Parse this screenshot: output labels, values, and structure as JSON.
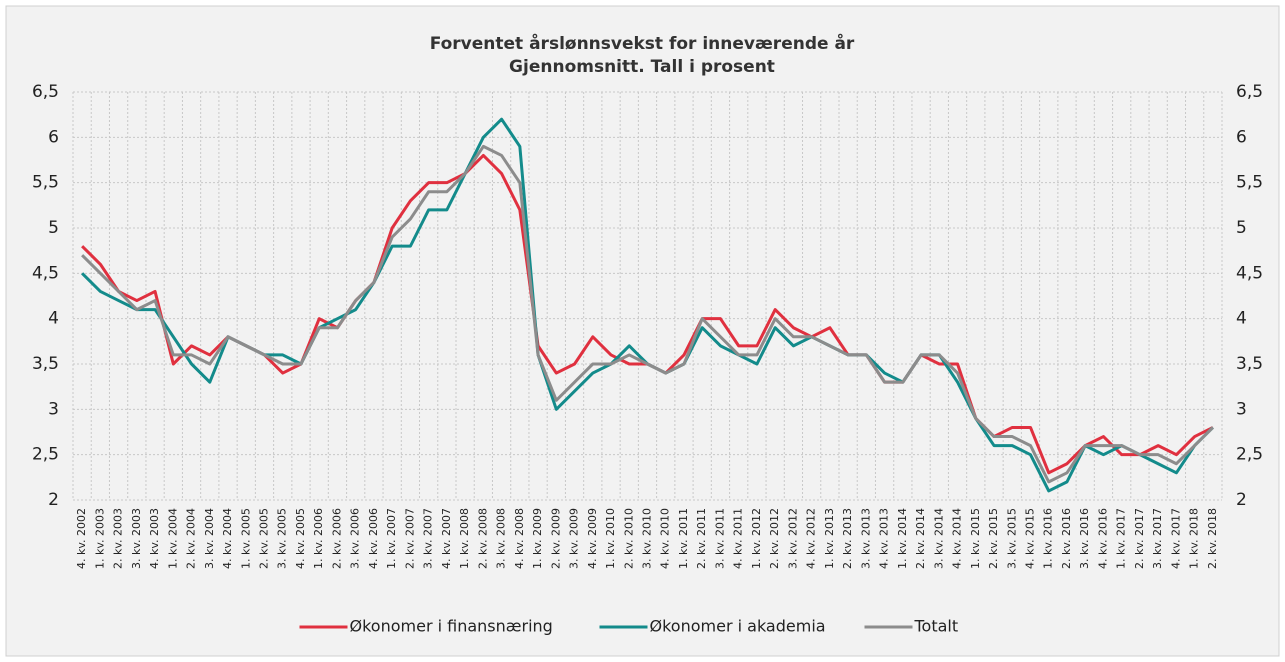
{
  "chart_data": {
    "type": "line",
    "title": "Forventet årslønnsvekst for inneværende år",
    "subtitle": "Gjennomsnitt. Tall i prosent",
    "categories": [
      "4. kv. 2002",
      "1. kv. 2003",
      "2. kv. 2003",
      "3. kv. 2003",
      "4. kv. 2003",
      "1. kv. 2004",
      "2. kv. 2004",
      "3. kv. 2004",
      "4. kv. 2004",
      "1. kv. 2005",
      "2. kv. 2005",
      "3. kv. 2005",
      "4. kv. 2005",
      "1. kv. 2006",
      "2. kv. 2006",
      "3. kv. 2006",
      "4. kv. 2006",
      "1. kv. 2007",
      "2. kv. 2007",
      "3. kv. 2007",
      "4. kv. 2007",
      "1. kv. 2008",
      "2. kv. 2008",
      "3. kv. 2008",
      "4. kv. 2008",
      "1. kv. 2009",
      "2. kv. 2009",
      "3. kv. 2009",
      "4. kv. 2009",
      "1. kv. 2010",
      "2. kv. 2010",
      "3. kv. 2010",
      "4. kv. 2010",
      "1. kv. 2011",
      "2. kv. 2011",
      "3. kv. 2011",
      "4. kv. 2011",
      "1. kv. 2012",
      "2. kv. 2012",
      "3. kv. 2012",
      "4. kv. 2012",
      "1. kv. 2013",
      "2. kv. 2013",
      "3. kv. 2013",
      "4. kv. 2013",
      "1. kv. 2014",
      "2. kv. 2014",
      "3. kv. 2014",
      "4. kv. 2014",
      "1. kv. 2015",
      "2. kv. 2015",
      "3. kv. 2015",
      "4. kv. 2015",
      "1. kv. 2016",
      "2. kv. 2016",
      "3. kv. 2016",
      "4. kv. 2016",
      "1. kv. 2017",
      "2. kv. 2017",
      "3. kv. 2017",
      "4. kv. 2017",
      "1. kv. 2018",
      "2. kv. 2018"
    ],
    "series": [
      {
        "name": "Økonomer i finansnæring",
        "color": "#e0303f",
        "values": [
          4.8,
          4.6,
          4.3,
          4.2,
          4.3,
          3.5,
          3.7,
          3.6,
          3.8,
          3.7,
          3.6,
          3.4,
          3.5,
          4.0,
          3.9,
          4.2,
          4.4,
          5.0,
          5.3,
          5.5,
          5.5,
          5.6,
          5.8,
          5.6,
          5.2,
          3.7,
          3.4,
          3.5,
          3.8,
          3.6,
          3.5,
          3.5,
          3.4,
          3.6,
          4.0,
          4.0,
          3.7,
          3.7,
          4.1,
          3.9,
          3.8,
          3.9,
          3.6,
          3.6,
          3.3,
          3.3,
          3.6,
          3.5,
          3.5,
          2.9,
          2.7,
          2.8,
          2.8,
          2.3,
          2.4,
          2.6,
          2.7,
          2.5,
          2.5,
          2.6,
          2.5,
          2.7,
          2.8
        ]
      },
      {
        "name": "Økonomer i akademia",
        "color": "#138b8b",
        "values": [
          4.5,
          4.3,
          4.2,
          4.1,
          4.1,
          3.8,
          3.5,
          3.3,
          3.8,
          3.7,
          3.6,
          3.6,
          3.5,
          3.9,
          4.0,
          4.1,
          4.4,
          4.8,
          4.8,
          5.2,
          5.2,
          5.6,
          6.0,
          6.2,
          5.9,
          3.6,
          3.0,
          3.2,
          3.4,
          3.5,
          3.7,
          3.5,
          3.4,
          3.5,
          3.9,
          3.7,
          3.6,
          3.5,
          3.9,
          3.7,
          3.8,
          3.7,
          3.6,
          3.6,
          3.4,
          3.3,
          3.6,
          3.6,
          3.3,
          2.9,
          2.6,
          2.6,
          2.5,
          2.1,
          2.2,
          2.6,
          2.5,
          2.6,
          2.5,
          2.4,
          2.3,
          2.6,
          2.8
        ]
      },
      {
        "name": "Totalt",
        "color": "#8c8c8c",
        "values": [
          4.7,
          4.5,
          4.3,
          4.1,
          4.2,
          3.6,
          3.6,
          3.5,
          3.8,
          3.7,
          3.6,
          3.5,
          3.5,
          3.9,
          3.9,
          4.2,
          4.4,
          4.9,
          5.1,
          5.4,
          5.4,
          5.6,
          5.9,
          5.8,
          5.5,
          3.6,
          3.1,
          3.3,
          3.5,
          3.5,
          3.6,
          3.5,
          3.4,
          3.5,
          4.0,
          3.8,
          3.6,
          3.6,
          4.0,
          3.8,
          3.8,
          3.7,
          3.6,
          3.6,
          3.3,
          3.3,
          3.6,
          3.6,
          3.4,
          2.9,
          2.7,
          2.7,
          2.6,
          2.2,
          2.3,
          2.6,
          2.6,
          2.6,
          2.5,
          2.5,
          2.4,
          2.6,
          2.8
        ]
      }
    ],
    "ylim": [
      2,
      6.5
    ],
    "yticks": [
      2,
      {
        "value": 2.5,
        "label": "2,5"
      },
      3,
      {
        "value": 3.5,
        "label": "3,5"
      },
      4,
      {
        "value": 4.5,
        "label": "4,5"
      },
      5,
      {
        "value": 5.5,
        "label": "5,5"
      },
      6,
      {
        "value": 6.5,
        "label": "6,5"
      }
    ],
    "y2lim": [
      2,
      6.5
    ],
    "y2ticks": [
      2,
      {
        "value": 2.5,
        "label": "2,5"
      },
      3,
      {
        "value": 3.5,
        "label": "3,5"
      },
      4,
      {
        "value": 4.5,
        "label": "4,5"
      },
      5,
      {
        "value": 5.5,
        "label": "5,5"
      },
      6,
      {
        "value": 6.5,
        "label": "6,5"
      }
    ],
    "grid": true,
    "legend": "bottom"
  }
}
